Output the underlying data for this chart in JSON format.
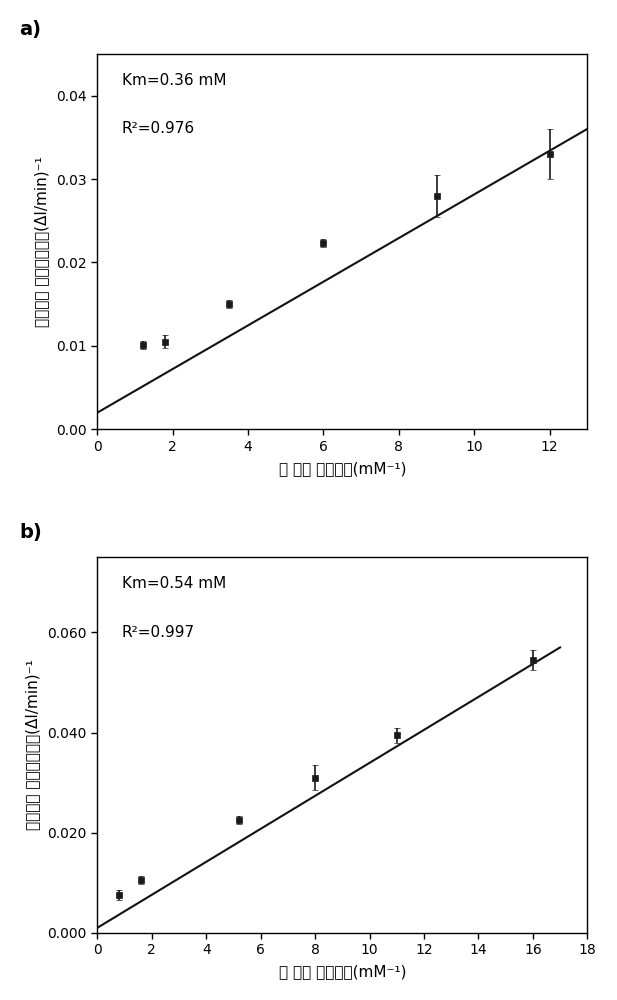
{
  "panel_a": {
    "x": [
      1.2,
      1.8,
      3.5,
      6.0,
      9.0,
      12.0
    ],
    "y": [
      0.0101,
      0.0105,
      0.015,
      0.0223,
      0.028,
      0.033
    ],
    "yerr": [
      0.0005,
      0.0008,
      0.0005,
      0.0005,
      0.0025,
      0.003
    ],
    "fit_x": [
      0,
      13
    ],
    "fit_y": [
      0.002,
      0.036
    ],
    "annotation_line1": "Km=0.36 mM",
    "annotation_line2": "R²=0.976",
    "xlabel": "底 物浓 度的倒数(mM⁻¹)",
    "ylabel_line1": "酶催化反 应速度的倒数(ΔI/min)⁻¹",
    "xlim": [
      0,
      13
    ],
    "ylim": [
      0,
      0.045
    ],
    "xticks": [
      0,
      2,
      4,
      6,
      8,
      10,
      12
    ],
    "yticks": [
      0.0,
      0.01,
      0.02,
      0.03,
      0.04
    ],
    "ytick_labels": [
      "0.00",
      "0.01",
      "0.02",
      "0.03",
      "0.04"
    ],
    "panel_label": "a)"
  },
  "panel_b": {
    "x": [
      0.8,
      1.6,
      5.2,
      8.0,
      11.0,
      16.0
    ],
    "y": [
      0.0075,
      0.0105,
      0.0225,
      0.031,
      0.0395,
      0.0545
    ],
    "yerr": [
      0.001,
      0.0008,
      0.0008,
      0.0025,
      0.0015,
      0.002
    ],
    "fit_x": [
      0,
      17
    ],
    "fit_y": [
      0.001,
      0.057
    ],
    "annotation_line1": "Km=0.54 mM",
    "annotation_line2": "R²=0.997",
    "xlabel": "底 物浓 度的倒数(mM⁻¹)",
    "ylabel_line1": "酶催化反 应速度的倒数(ΔI/min)⁻¹",
    "xlim": [
      0,
      18
    ],
    "ylim": [
      0,
      0.075
    ],
    "xticks": [
      0,
      2,
      4,
      6,
      8,
      10,
      12,
      14,
      16,
      18
    ],
    "yticks": [
      0.0,
      0.02,
      0.04,
      0.06
    ],
    "ytick_labels": [
      "0.000",
      "0.020",
      "0.040",
      "0.060"
    ],
    "panel_label": "b)"
  },
  "marker_color": "#1a1a1a",
  "line_color": "#111111",
  "annotation_fontsize": 11,
  "label_fontsize": 11,
  "tick_fontsize": 10,
  "panel_label_fontsize": 14
}
